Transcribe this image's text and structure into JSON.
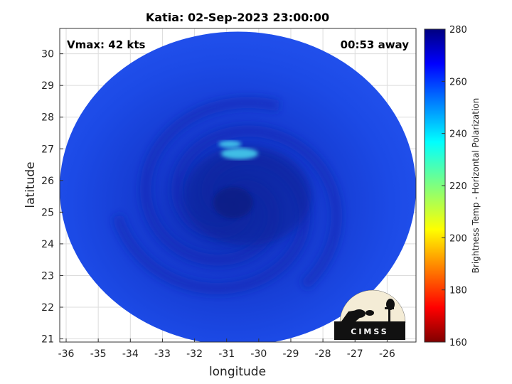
{
  "chart_data": {
    "type": "heatmap",
    "title": "Katia: 02-Sep-2023 23:00:00",
    "xlabel": "longitude",
    "ylabel": "latitude",
    "annotations": {
      "vmax": "Vmax: 42 kts",
      "time_away": "00:53 away"
    },
    "xlim": [
      -36.2,
      -25.1
    ],
    "ylim": [
      20.9,
      30.8
    ],
    "xticks": [
      -36,
      -35,
      -34,
      -33,
      -32,
      -31,
      -30,
      -29,
      -28,
      -27,
      -26
    ],
    "yticks": [
      21,
      22,
      23,
      24,
      25,
      26,
      27,
      28,
      29,
      30
    ],
    "grid": true,
    "colorbar": {
      "label": "Brightness Temp - Horizontal Polarization",
      "range": [
        160,
        280
      ],
      "ticks": [
        160,
        180,
        200,
        220,
        240,
        260,
        280
      ],
      "colormap": "jet"
    },
    "swath": {
      "center_lon": -30.65,
      "center_lat": 25.75,
      "lon_radius": 5.55,
      "lat_radius": 4.95
    },
    "field_values": {
      "background_K": 258,
      "eye": {
        "lon": -30.8,
        "lat": 25.3,
        "value_K": 268
      },
      "warm_spots": [
        {
          "lon": -30.6,
          "lat": 26.85,
          "value_K": 238
        },
        {
          "lon": -30.9,
          "lat": 27.15,
          "value_K": 245
        }
      ]
    },
    "colors": {
      "background_blue": "#1a48e6",
      "cold_band": "#0d2bb0",
      "warm_spot": "#4ad8f0"
    }
  },
  "logo": {
    "text": "CIMSS"
  }
}
